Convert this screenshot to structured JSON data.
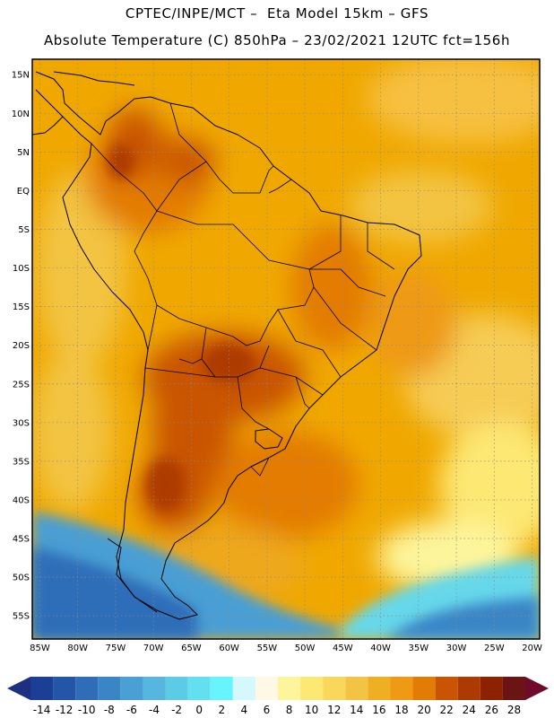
{
  "header": {
    "line1": "CPTEC/INPE/MCT –  Eta Model 15km – GFS",
    "line2": "Absolute Temperature (C) 850hPa – 23/02/2021 12UTC fct=156h"
  },
  "map": {
    "lat_labels": [
      "15N",
      "10N",
      "5N",
      "EQ",
      "5S",
      "10S",
      "15S",
      "20S",
      "25S",
      "30S",
      "35S",
      "40S",
      "45S",
      "50S",
      "55S"
    ],
    "lon_labels": [
      "85W",
      "80W",
      "75W",
      "70W",
      "65W",
      "60W",
      "55W",
      "50W",
      "45W",
      "40W",
      "35W",
      "30W",
      "25W",
      "20W"
    ],
    "lat_values": [
      15,
      10,
      5,
      0,
      -5,
      -10,
      -15,
      -20,
      -25,
      -30,
      -35,
      -40,
      -45,
      -50,
      -55
    ],
    "lon_values": [
      -85,
      -80,
      -75,
      -70,
      -65,
      -60,
      -55,
      -50,
      -45,
      -40,
      -35,
      -30,
      -25,
      -20
    ],
    "extent": {
      "lon_min": -86,
      "lon_max": -19,
      "lat_min": -58,
      "lat_max": 17
    },
    "background_color": "#f0a800"
  },
  "colorbar": {
    "labels": [
      "-14",
      "-12",
      "-10",
      "-8",
      "-6",
      "-4",
      "-2",
      "0",
      "2",
      "4",
      "6",
      "8",
      "10",
      "12",
      "14",
      "16",
      "18",
      "20",
      "22",
      "24",
      "26",
      "28"
    ],
    "colors": [
      "#1c3f96",
      "#2456a7",
      "#2f6db8",
      "#3a85c6",
      "#4a9fd4",
      "#56b6de",
      "#5ccbe6",
      "#63e0f0",
      "#66f5ff",
      "#d4f8fb",
      "#fff8e6",
      "#fdf59b",
      "#fde873",
      "#f9d75a",
      "#f3c443",
      "#eeb022",
      "#ee9a14",
      "#e37c04",
      "#c95403",
      "#ad3a02",
      "#8c2200",
      "#6b1414"
    ],
    "end_low_color": "#1e2f82",
    "end_high_color": "#6e0a2a"
  }
}
